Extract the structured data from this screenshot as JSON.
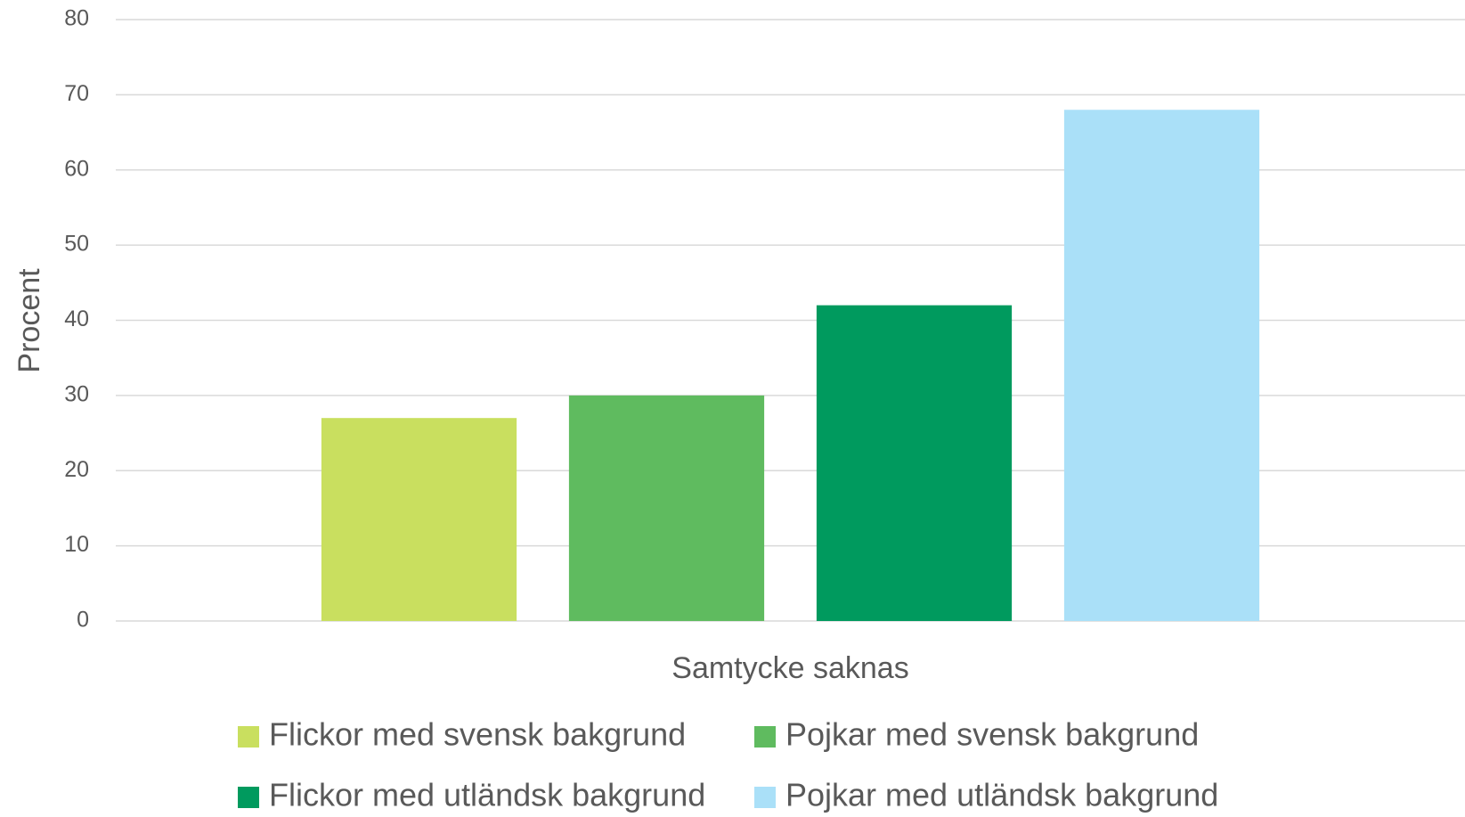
{
  "chart_data": {
    "type": "bar",
    "ylabel": "Procent",
    "categories": [
      "Samtycke saknas"
    ],
    "series": [
      {
        "name": "Flickor med svensk bakgrund",
        "color": "#c9df5f",
        "values": [
          27
        ]
      },
      {
        "name": "Pojkar med svensk bakgrund",
        "color": "#5fbb5f",
        "values": [
          30
        ]
      },
      {
        "name": "Flickor med utländsk bakgrund",
        "color": "#009a5e",
        "values": [
          42
        ]
      },
      {
        "name": "Pojkar med utländsk bakgrund",
        "color": "#aae0f8",
        "values": [
          68
        ]
      }
    ],
    "ylim": [
      0,
      80
    ],
    "yticks": [
      0,
      10,
      20,
      30,
      40,
      50,
      60,
      70,
      80
    ],
    "grid": true,
    "legend": "bottom"
  }
}
